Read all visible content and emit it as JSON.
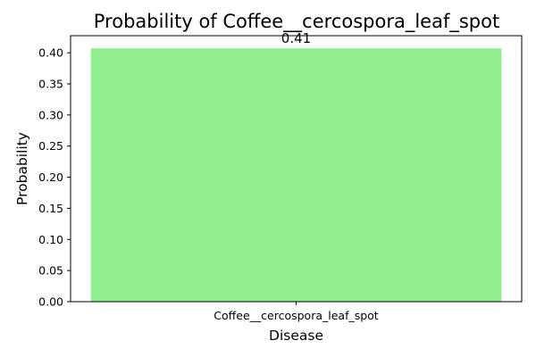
{
  "chart_data": {
    "type": "bar",
    "title": "Probability of Coffee__cercospora_leaf_spot",
    "xlabel": "Disease",
    "ylabel": "Probability",
    "categories": [
      "Coffee__cercospora_leaf_spot"
    ],
    "values": [
      0.407
    ],
    "data_labels": [
      "0.41"
    ],
    "ylim": [
      0,
      0.4274
    ],
    "yticks": [
      0.0,
      0.05,
      0.1,
      0.15,
      0.2,
      0.25,
      0.3,
      0.35,
      0.4
    ],
    "ytick_labels": [
      "0.00",
      "0.05",
      "0.10",
      "0.15",
      "0.20",
      "0.25",
      "0.30",
      "0.35",
      "0.40"
    ],
    "bar_color": "#90ee90",
    "grid": false,
    "legend": "none"
  }
}
